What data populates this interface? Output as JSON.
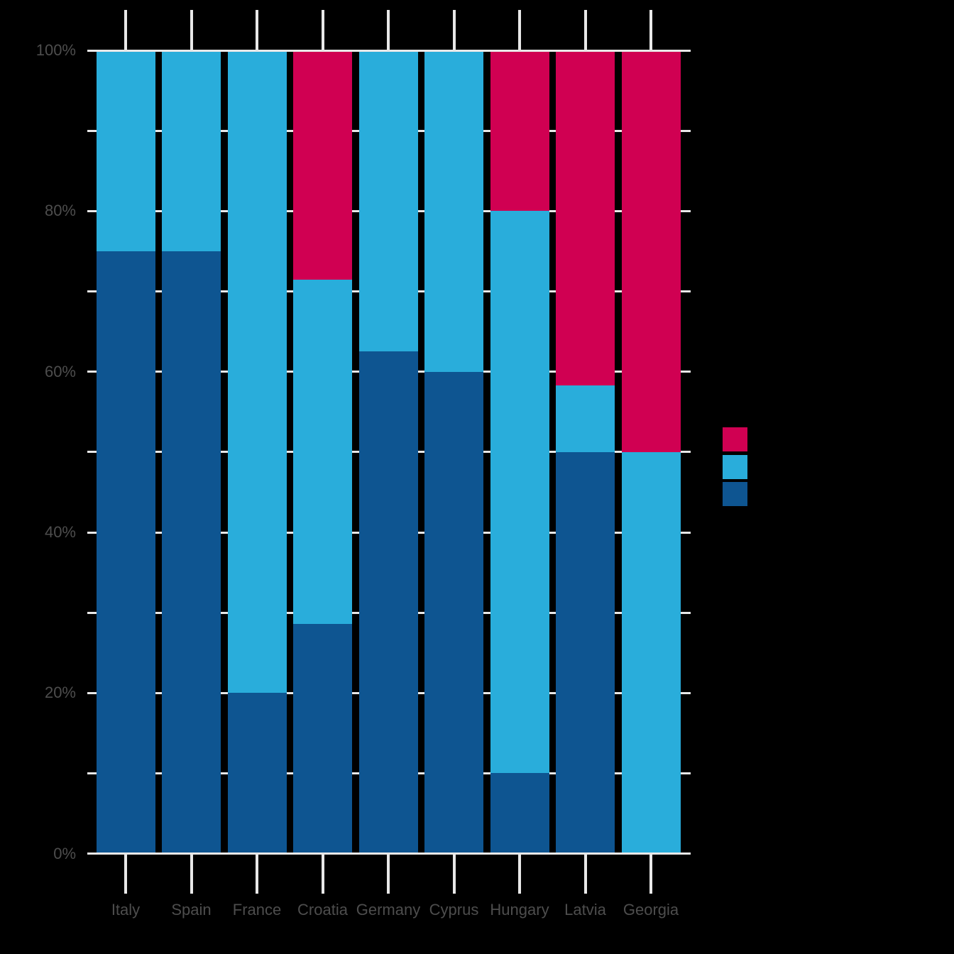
{
  "chart_data": {
    "type": "bar",
    "variant": "stacked-100-percent",
    "title": "",
    "categories": [
      "Italy",
      "Spain",
      "France",
      "Croatia",
      "Germany",
      "Cyprus",
      "Hungary",
      "Latvia",
      "Georgia"
    ],
    "series": [
      {
        "name": "dark-blue-bottom-segment",
        "color": "#0E5591",
        "values": [
          75,
          75,
          20,
          28.57,
          62.5,
          60,
          10,
          50,
          0
        ]
      },
      {
        "name": "light-blue-middle-segment",
        "color": "#29ADDB",
        "values": [
          25,
          25,
          80,
          42.86,
          37.5,
          40,
          70,
          8.33,
          50
        ]
      },
      {
        "name": "pink-top-segment",
        "color": "#D00052",
        "values": [
          0,
          0,
          0,
          28.57,
          0,
          0,
          20,
          41.67,
          50
        ]
      }
    ],
    "y_axis": {
      "min": 0,
      "max": 100,
      "unit": "%",
      "major_step": 20,
      "minor_step": 10,
      "major_tick_labels": [
        "0%",
        "20%",
        "40%",
        "60%",
        "80%",
        "100%"
      ]
    },
    "x_axis": {
      "tick_labels": [
        "Italy",
        "Spain",
        "France",
        "Croatia",
        "Germany",
        "Cyprus",
        "Hungary",
        "Latvia",
        "Georgia"
      ]
    },
    "legend": {
      "position": "right-middle",
      "labels": [
        "",
        "",
        ""
      ],
      "colors": [
        "#D00052",
        "#29ADDB",
        "#0E5591"
      ]
    },
    "grid": true
  },
  "style": {
    "background_color": "#000000",
    "gridline_color": "#E8E8E8",
    "axis_label_color": "#4D4D4D"
  }
}
